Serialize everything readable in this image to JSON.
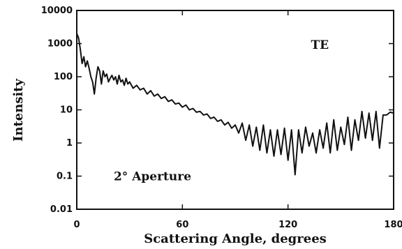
{
  "chart_data": {
    "type": "line",
    "xlabel": "Scattering Angle, degrees",
    "ylabel": "Intensity",
    "xlim": [
      0,
      180
    ],
    "ylim": [
      0.01,
      10000
    ],
    "yscale": "log",
    "grid": false,
    "x_ticks": [
      0,
      60,
      120,
      180
    ],
    "x_tick_labels": [
      "0",
      "60",
      "120",
      "180"
    ],
    "y_ticks": [
      0.01,
      0.1,
      1,
      10,
      100,
      1000,
      10000
    ],
    "y_tick_labels": [
      "0.01",
      "0.1",
      "1",
      "10",
      "100",
      "1000",
      "10000"
    ],
    "annotations": [
      {
        "text": "TE",
        "x": 133,
        "y": 700
      },
      {
        "text": "2° Aperture",
        "x": 21,
        "y": 0.075
      }
    ],
    "series": [
      {
        "color": "#111111",
        "x": [
          0,
          1,
          2,
          3,
          4,
          5,
          6,
          7,
          8,
          9,
          10,
          11,
          12,
          13,
          14,
          15,
          16,
          17,
          18,
          19,
          20,
          21,
          22,
          23,
          24,
          25,
          26,
          27,
          28,
          29,
          30,
          32,
          34,
          36,
          38,
          40,
          42,
          44,
          46,
          48,
          50,
          52,
          54,
          56,
          58,
          60,
          62,
          64,
          66,
          68,
          70,
          72,
          74,
          76,
          78,
          80,
          82,
          84,
          86,
          88,
          90,
          92,
          94,
          96,
          98,
          100,
          102,
          104,
          106,
          108,
          110,
          112,
          114,
          116,
          118,
          120,
          122,
          124,
          126,
          128,
          130,
          132,
          134,
          136,
          138,
          140,
          142,
          144,
          146,
          148,
          150,
          152,
          154,
          156,
          158,
          160,
          162,
          164,
          166,
          168,
          170,
          172,
          174,
          176,
          178,
          180
        ],
        "y": [
          2000,
          1500,
          700,
          250,
          400,
          200,
          300,
          180,
          100,
          70,
          30,
          90,
          200,
          150,
          60,
          150,
          100,
          120,
          70,
          90,
          110,
          80,
          100,
          60,
          110,
          70,
          80,
          55,
          90,
          60,
          70,
          45,
          55,
          40,
          45,
          30,
          38,
          26,
          30,
          22,
          25,
          18,
          20,
          15,
          16,
          12,
          14,
          10,
          11,
          8.5,
          9,
          7,
          7.5,
          5.5,
          6,
          4.5,
          5,
          3.5,
          4.2,
          2.8,
          3.5,
          2,
          4,
          1.2,
          3.5,
          0.8,
          3,
          0.6,
          3.5,
          0.5,
          2.5,
          0.4,
          2.5,
          0.45,
          2.8,
          0.3,
          2.5,
          0.11,
          2.5,
          0.5,
          3,
          0.8,
          2,
          0.5,
          2.5,
          0.7,
          4,
          0.5,
          5,
          0.6,
          3,
          0.9,
          6,
          0.6,
          5,
          1.2,
          9,
          1.4,
          8,
          1.2,
          9,
          0.7,
          7,
          7,
          8.5,
          8
        ]
      }
    ]
  }
}
